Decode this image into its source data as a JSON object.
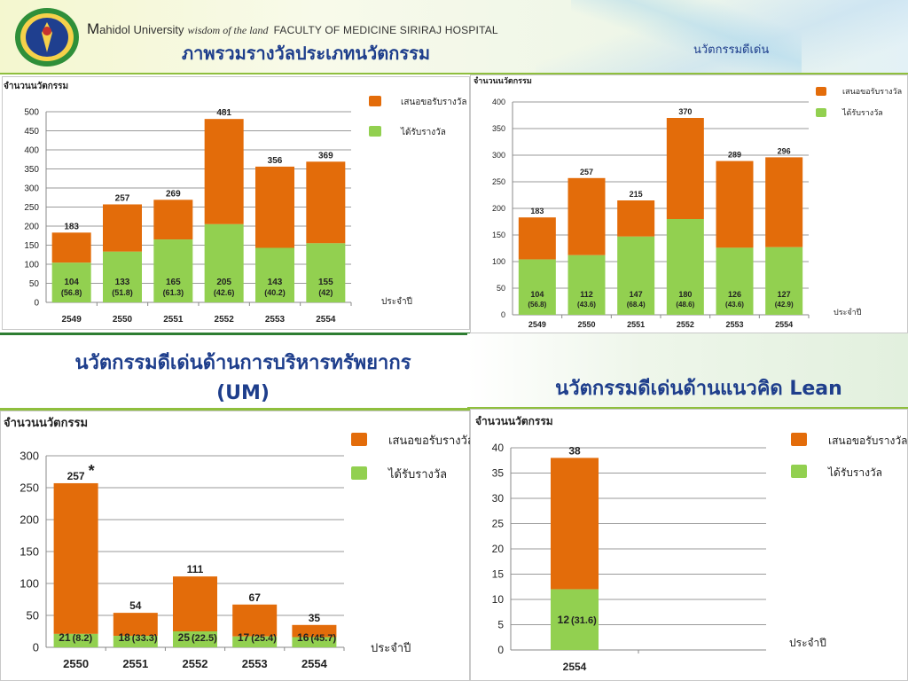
{
  "header": {
    "university_initial": "M",
    "university_name": "ahidol University",
    "motto": "wisdom of the land",
    "faculty": "FACULTY OF MEDICINE SIRIRAJ HOSPITAL",
    "title": "ภาพรวมรางวัลประเภทนวัตกรรม",
    "corner_label": "นวัตกรรมดีเด่น"
  },
  "sections": {
    "um_title_line1": "นวัตกรรมดีเด่นด้านการบริหารทรัพยากร",
    "um_title_line2": "(UM)",
    "lean_title": "นวัตกรรมดีเด่นด้านแนวคิด Lean"
  },
  "colors": {
    "submitted": "#e36c0a",
    "awarded": "#92d050",
    "title": "#1e3e8c",
    "grid": "#9a9a9a"
  },
  "chart_data": [
    {
      "id": "overall",
      "type": "bar",
      "stacked": true,
      "ylabel": "จำนวนนวัตกรรม",
      "xlabel": "ประจำปี",
      "categories": [
        "2549",
        "2550",
        "2551",
        "2552",
        "2553",
        "2554"
      ],
      "series": [
        {
          "name": "ได้รับรางวัล",
          "values": [
            104,
            133,
            165,
            205,
            143,
            155
          ]
        },
        {
          "name": "เสนอขอรับรางวัล",
          "values": [
            79,
            124,
            104,
            276,
            213,
            214
          ]
        }
      ],
      "totals": [
        183,
        257,
        269,
        481,
        356,
        369
      ],
      "awarded_labels": [
        "104",
        "133",
        "165",
        "205",
        "143",
        "155"
      ],
      "percent_labels": [
        "(56.8)",
        "(51.8)",
        "(61.3)",
        "(42.6)",
        "(40.2)",
        "(42)"
      ],
      "ylim": [
        0,
        500
      ],
      "ytick_step": 50,
      "legend": "top-right",
      "grid": true
    },
    {
      "id": "outstanding",
      "type": "bar",
      "stacked": true,
      "ylabel": "จำนวนนวัตกรรม",
      "xlabel": "ประจำปี",
      "categories": [
        "2549",
        "2550",
        "2551",
        "2552",
        "2553",
        "2554"
      ],
      "series": [
        {
          "name": "ได้รับรางวัล",
          "values": [
            104,
            112,
            147,
            180,
            126,
            127
          ]
        },
        {
          "name": "เสนอขอรับรางวัล",
          "values": [
            79,
            145,
            68,
            190,
            163,
            169
          ]
        }
      ],
      "totals": [
        183,
        257,
        215,
        370,
        289,
        296
      ],
      "awarded_labels": [
        "104",
        "112",
        "147",
        "180",
        "126",
        "127"
      ],
      "percent_labels": [
        "(56.8)",
        "(43.6)",
        "(68.4)",
        "(48.6)",
        "(43.6)",
        "(42.9)"
      ],
      "ylim": [
        0,
        400
      ],
      "ytick_step": 50,
      "legend": "top-right",
      "grid": true
    },
    {
      "id": "um",
      "type": "bar",
      "stacked": true,
      "ylabel": "จำนวนนวัตกรรม",
      "xlabel": "ประจำปี",
      "categories": [
        "2550",
        "2551",
        "2552",
        "2553",
        "2554"
      ],
      "series": [
        {
          "name": "ได้รับรางวัล",
          "values": [
            21,
            18,
            25,
            17,
            16
          ]
        },
        {
          "name": "เสนอขอรับรางวัล",
          "values": [
            236,
            36,
            86,
            50,
            19
          ]
        }
      ],
      "totals": [
        257,
        54,
        111,
        67,
        35
      ],
      "total_labels": [
        "257",
        "54",
        "111",
        "67",
        "35"
      ],
      "first_total_mark": "*",
      "awarded_labels": [
        "21",
        "18",
        "25",
        "17",
        "16"
      ],
      "percent_labels": [
        "(8.2)",
        "(33.3)",
        "(22.5)",
        "(25.4)",
        "(45.7)"
      ],
      "ylim": [
        0,
        300
      ],
      "ytick_step": 50,
      "legend": "top-right",
      "grid": true
    },
    {
      "id": "lean",
      "type": "bar",
      "stacked": true,
      "ylabel": "จำนวนนวัตกรรม",
      "xlabel": "ประจำปี",
      "categories": [
        "2554"
      ],
      "series": [
        {
          "name": "ได้รับรางวัล",
          "values": [
            12
          ]
        },
        {
          "name": "เสนอขอรับรางวัล",
          "values": [
            26
          ]
        }
      ],
      "totals": [
        38
      ],
      "awarded_labels": [
        "12"
      ],
      "percent_labels": [
        "(31.6)"
      ],
      "ylim": [
        0,
        40
      ],
      "ytick_step": 5,
      "legend": "top-right",
      "grid": true
    }
  ]
}
